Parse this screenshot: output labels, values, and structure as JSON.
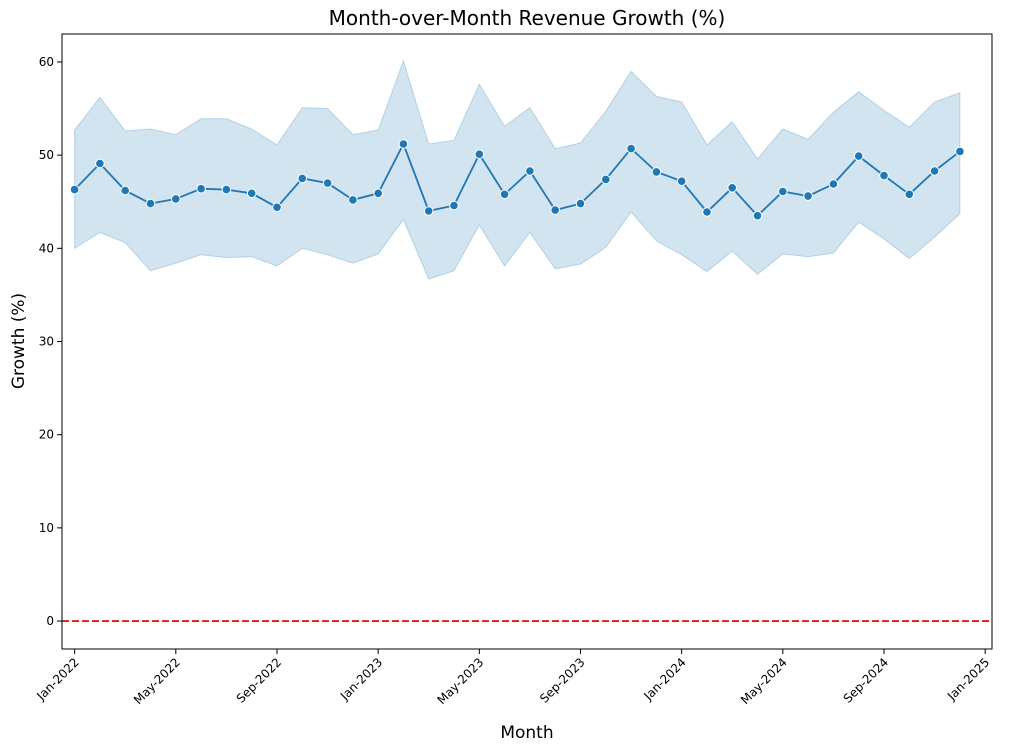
{
  "chart_data": {
    "type": "line",
    "title": "Month-over-Month Revenue Growth (%)",
    "xlabel": "Month",
    "ylabel": "Growth (%)",
    "x_ticks": [
      "Jan-2022",
      "May-2022",
      "Sep-2022",
      "Jan-2023",
      "May-2023",
      "Sep-2023",
      "Jan-2024",
      "May-2024",
      "Sep-2024",
      "Jan-2025"
    ],
    "y_ticks": [
      0,
      10,
      20,
      30,
      40,
      50,
      60
    ],
    "ylim": [
      -3,
      63
    ],
    "x_range": [
      "2021-12",
      "2025-01"
    ],
    "grid": false,
    "reference_line": {
      "y": 0,
      "color": "#e41a1c",
      "style": "dashed"
    },
    "series": [
      {
        "color": "#1f77b4",
        "band_color": "#1f77b4",
        "x": [
          "2022-01",
          "2022-02",
          "2022-03",
          "2022-04",
          "2022-05",
          "2022-06",
          "2022-07",
          "2022-08",
          "2022-09",
          "2022-10",
          "2022-11",
          "2022-12",
          "2023-01",
          "2023-02",
          "2023-03",
          "2023-04",
          "2023-05",
          "2023-06",
          "2023-07",
          "2023-08",
          "2023-09",
          "2023-10",
          "2023-11",
          "2023-12",
          "2024-01",
          "2024-02",
          "2024-03",
          "2024-04",
          "2024-05",
          "2024-06",
          "2024-07",
          "2024-08",
          "2024-09",
          "2024-10",
          "2024-11",
          "2024-12"
        ],
        "values": [
          46.3,
          49.1,
          46.2,
          44.8,
          45.3,
          46.4,
          46.3,
          45.9,
          44.4,
          47.5,
          47.0,
          45.2,
          45.9,
          51.2,
          44.0,
          44.6,
          50.1,
          45.8,
          48.3,
          44.1,
          44.8,
          47.4,
          50.7,
          48.2,
          47.2,
          43.9,
          46.5,
          43.5,
          46.1,
          45.6,
          46.9,
          49.9,
          47.8,
          45.8,
          48.3,
          50.4
        ],
        "upper": [
          52.7,
          56.2,
          52.6,
          52.8,
          52.2,
          53.9,
          53.9,
          52.8,
          51.1,
          55.1,
          55.0,
          52.2,
          52.7,
          60.1,
          51.2,
          51.6,
          57.6,
          53.1,
          55.1,
          50.7,
          51.3,
          54.7,
          59.0,
          56.3,
          55.7,
          51.1,
          53.6,
          49.6,
          52.8,
          51.7,
          54.6,
          56.8,
          54.8,
          53.0,
          55.7,
          56.7
        ],
        "lower": [
          40.0,
          41.7,
          40.6,
          37.6,
          38.4,
          39.3,
          39.0,
          39.1,
          38.1,
          40.0,
          39.3,
          38.4,
          39.4,
          43.1,
          36.7,
          37.6,
          42.5,
          38.1,
          41.7,
          37.8,
          38.3,
          40.1,
          43.9,
          40.8,
          39.3,
          37.5,
          39.7,
          37.2,
          39.4,
          39.1,
          39.5,
          42.8,
          41.0,
          38.9,
          41.2,
          43.7
        ]
      }
    ]
  }
}
